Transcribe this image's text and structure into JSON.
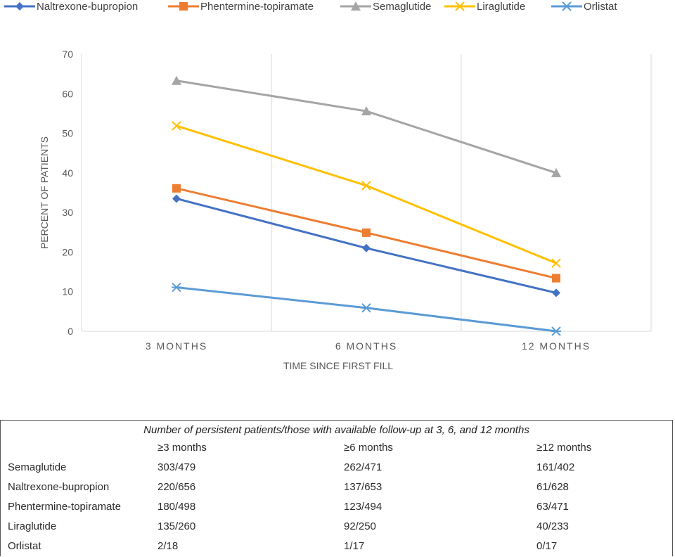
{
  "chart_data": {
    "type": "line",
    "title": "",
    "xlabel": "TIME SINCE FIRST FILL",
    "ylabel": "PERCENT OF PATIENTS",
    "categories": [
      "3 MONTHS",
      "6 MONTHS",
      "12 MONTHS"
    ],
    "ylim": [
      0,
      70
    ],
    "yticks": [
      0,
      10,
      20,
      30,
      40,
      50,
      60,
      70
    ],
    "grid": "vertical lines between categories",
    "legend": "top",
    "series": [
      {
        "name": "Naltrexone-bupropion",
        "values": [
          33.5,
          21.0,
          9.7
        ],
        "color": "#4472c4",
        "marker": "diamond"
      },
      {
        "name": "Phentermine-topiramate",
        "values": [
          36.1,
          24.9,
          13.4
        ],
        "color": "#ed7d31",
        "marker": "square"
      },
      {
        "name": "Semaglutide",
        "values": [
          63.3,
          55.6,
          40.0
        ],
        "color": "#a5a5a5",
        "marker": "triangle"
      },
      {
        "name": "Liraglutide",
        "values": [
          51.9,
          36.8,
          17.2
        ],
        "color": "#ffc000",
        "marker": "x"
      },
      {
        "name": "Orlistat",
        "values": [
          11.1,
          5.9,
          0.0
        ],
        "color": "#5b9bd5",
        "marker": "asterisk"
      }
    ]
  },
  "table": {
    "caption": "Number of persistent patients/those with available follow-up at 3, 6, and 12 months",
    "headers": [
      "≥3 months",
      "≥6 months",
      "≥12 months"
    ],
    "rows": [
      {
        "drug": "Semaglutide",
        "m3": "303/479",
        "m6": "262/471",
        "m12": "161/402"
      },
      {
        "drug": "Naltrexone-bupropion",
        "m3": "220/656",
        "m6": "137/653",
        "m12": "61/628"
      },
      {
        "drug": "Phentermine-topiramate",
        "m3": "180/498",
        "m6": "123/494",
        "m12": "63/471"
      },
      {
        "drug": "Liraglutide",
        "m3": "135/260",
        "m6": "92/250",
        "m12": "40/233"
      },
      {
        "drug": "Orlistat",
        "m3": "2/18",
        "m6": "1/17",
        "m12": "0/17"
      }
    ]
  }
}
